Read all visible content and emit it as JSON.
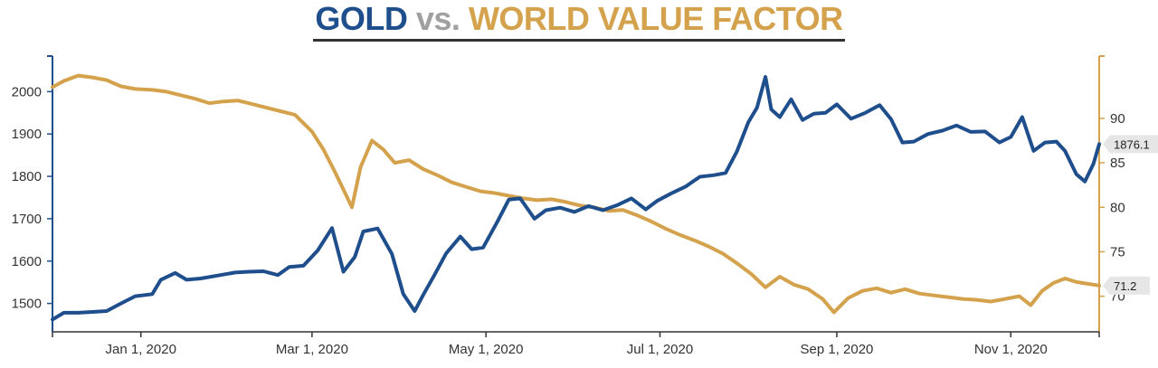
{
  "title": {
    "part1": "GOLD",
    "part2": " vs. ",
    "part3": "WORLD VALUE FACTOR",
    "color_gold_series": "#1f4e8c",
    "color_vs": "#a0a0a0",
    "color_value_series": "#d4a24c"
  },
  "chart_data": {
    "type": "line",
    "title": "GOLD vs. WORLD VALUE FACTOR",
    "xlabel": "",
    "ylabel_left": "",
    "ylabel_right": "",
    "x_range": [
      "2019-12-01",
      "2020-12-02"
    ],
    "x_ticks": [
      {
        "date": "2020-01-01",
        "label": "Jan 1, 2020"
      },
      {
        "date": "2020-03-01",
        "label": "Mar 1, 2020"
      },
      {
        "date": "2020-05-01",
        "label": "May 1, 2020"
      },
      {
        "date": "2020-07-01",
        "label": "Jul 1, 2020"
      },
      {
        "date": "2020-09-01",
        "label": "Sep 1, 2020"
      },
      {
        "date": "2020-11-01",
        "label": "Nov 1, 2020"
      }
    ],
    "y_left": {
      "range": [
        1433,
        2084
      ],
      "ticks": [
        "1500",
        "1600",
        "1700",
        "1800",
        "1900",
        "2000"
      ]
    },
    "y_right": {
      "range": [
        66.0,
        97.0
      ],
      "ticks": [
        "70",
        "75",
        "80",
        "85",
        "90"
      ]
    },
    "grid": false,
    "legend": "none",
    "series": [
      {
        "axis": "left",
        "color": "#1f4e8c",
        "end_label": "1876.1",
        "points": [
          [
            "2019-12-01",
            1462
          ],
          [
            "2019-12-05",
            1478
          ],
          [
            "2019-12-10",
            1478
          ],
          [
            "2019-12-15",
            1480
          ],
          [
            "2019-12-20",
            1482
          ],
          [
            "2019-12-25",
            1500
          ],
          [
            "2019-12-30",
            1517
          ],
          [
            "2020-01-05",
            1522
          ],
          [
            "2020-01-08",
            1556
          ],
          [
            "2020-01-13",
            1572
          ],
          [
            "2020-01-17",
            1556
          ],
          [
            "2020-01-22",
            1559
          ],
          [
            "2020-01-28",
            1566
          ],
          [
            "2020-02-03",
            1573
          ],
          [
            "2020-02-08",
            1575
          ],
          [
            "2020-02-13",
            1576
          ],
          [
            "2020-02-18",
            1567
          ],
          [
            "2020-02-22",
            1586
          ],
          [
            "2020-02-27",
            1589
          ],
          [
            "2020-03-03",
            1625
          ],
          [
            "2020-03-08",
            1678
          ],
          [
            "2020-03-12",
            1575
          ],
          [
            "2020-03-16",
            1610
          ],
          [
            "2020-03-19",
            1670
          ],
          [
            "2020-03-24",
            1677
          ],
          [
            "2020-03-29",
            1617
          ],
          [
            "2020-04-02",
            1522
          ],
          [
            "2020-04-06",
            1482
          ],
          [
            "2020-04-09",
            1520
          ],
          [
            "2020-04-13",
            1568
          ],
          [
            "2020-04-17",
            1618
          ],
          [
            "2020-04-22",
            1658
          ],
          [
            "2020-04-26",
            1628
          ],
          [
            "2020-04-30",
            1632
          ],
          [
            "2020-05-05",
            1693
          ],
          [
            "2020-05-09",
            1745
          ],
          [
            "2020-05-13",
            1748
          ],
          [
            "2020-05-18",
            1700
          ],
          [
            "2020-05-22",
            1720
          ],
          [
            "2020-05-27",
            1726
          ],
          [
            "2020-06-01",
            1716
          ],
          [
            "2020-06-06",
            1730
          ],
          [
            "2020-06-11",
            1720
          ],
          [
            "2020-06-16",
            1732
          ],
          [
            "2020-06-21",
            1748
          ],
          [
            "2020-06-26",
            1722
          ],
          [
            "2020-06-30",
            1742
          ],
          [
            "2020-07-05",
            1760
          ],
          [
            "2020-07-10",
            1776
          ],
          [
            "2020-07-15",
            1799
          ],
          [
            "2020-07-20",
            1803
          ],
          [
            "2020-07-24",
            1808
          ],
          [
            "2020-07-28",
            1859
          ],
          [
            "2020-08-01",
            1928
          ],
          [
            "2020-08-04",
            1962
          ],
          [
            "2020-08-07",
            2035
          ],
          [
            "2020-08-09",
            1958
          ],
          [
            "2020-08-12",
            1940
          ],
          [
            "2020-08-16",
            1982
          ],
          [
            "2020-08-20",
            1933
          ],
          [
            "2020-08-24",
            1948
          ],
          [
            "2020-08-28",
            1950
          ],
          [
            "2020-09-01",
            1970
          ],
          [
            "2020-09-06",
            1936
          ],
          [
            "2020-09-11",
            1950
          ],
          [
            "2020-09-16",
            1968
          ],
          [
            "2020-09-20",
            1935
          ],
          [
            "2020-09-24",
            1880
          ],
          [
            "2020-09-28",
            1882
          ],
          [
            "2020-10-03",
            1900
          ],
          [
            "2020-10-08",
            1908
          ],
          [
            "2020-10-13",
            1920
          ],
          [
            "2020-10-18",
            1905
          ],
          [
            "2020-10-23",
            1906
          ],
          [
            "2020-10-28",
            1880
          ],
          [
            "2020-11-01",
            1893
          ],
          [
            "2020-11-05",
            1940
          ],
          [
            "2020-11-09",
            1860
          ],
          [
            "2020-11-13",
            1880
          ],
          [
            "2020-11-17",
            1882
          ],
          [
            "2020-11-20",
            1860
          ],
          [
            "2020-11-24",
            1805
          ],
          [
            "2020-11-27",
            1788
          ],
          [
            "2020-11-30",
            1830
          ],
          [
            "2020-12-02",
            1876.1
          ]
        ]
      },
      {
        "axis": "right",
        "color": "#d4a24c",
        "end_label": "71.2",
        "points": [
          [
            "2019-12-01",
            93.5
          ],
          [
            "2019-12-05",
            94.2
          ],
          [
            "2019-12-10",
            94.8
          ],
          [
            "2019-12-15",
            94.6
          ],
          [
            "2019-12-20",
            94.3
          ],
          [
            "2019-12-25",
            93.6
          ],
          [
            "2019-12-30",
            93.3
          ],
          [
            "2020-01-05",
            93.2
          ],
          [
            "2020-01-10",
            93.0
          ],
          [
            "2020-01-15",
            92.6
          ],
          [
            "2020-01-20",
            92.2
          ],
          [
            "2020-01-25",
            91.7
          ],
          [
            "2020-01-30",
            91.9
          ],
          [
            "2020-02-04",
            92.0
          ],
          [
            "2020-02-09",
            91.6
          ],
          [
            "2020-02-14",
            91.2
          ],
          [
            "2020-02-19",
            90.8
          ],
          [
            "2020-02-24",
            90.4
          ],
          [
            "2020-03-01",
            88.5
          ],
          [
            "2020-03-05",
            86.5
          ],
          [
            "2020-03-09",
            84.0
          ],
          [
            "2020-03-12",
            82.0
          ],
          [
            "2020-03-15",
            80.0
          ],
          [
            "2020-03-18",
            84.5
          ],
          [
            "2020-03-22",
            87.5
          ],
          [
            "2020-03-26",
            86.5
          ],
          [
            "2020-03-30",
            85.0
          ],
          [
            "2020-04-04",
            85.3
          ],
          [
            "2020-04-09",
            84.3
          ],
          [
            "2020-04-14",
            83.6
          ],
          [
            "2020-04-19",
            82.8
          ],
          [
            "2020-04-24",
            82.3
          ],
          [
            "2020-04-29",
            81.8
          ],
          [
            "2020-05-04",
            81.6
          ],
          [
            "2020-05-09",
            81.3
          ],
          [
            "2020-05-14",
            81.0
          ],
          [
            "2020-05-19",
            80.8
          ],
          [
            "2020-05-24",
            80.9
          ],
          [
            "2020-05-29",
            80.6
          ],
          [
            "2020-06-03",
            80.2
          ],
          [
            "2020-06-08",
            80.0
          ],
          [
            "2020-06-13",
            79.6
          ],
          [
            "2020-06-18",
            79.7
          ],
          [
            "2020-06-23",
            79.1
          ],
          [
            "2020-06-28",
            78.4
          ],
          [
            "2020-07-03",
            77.6
          ],
          [
            "2020-07-08",
            76.9
          ],
          [
            "2020-07-13",
            76.3
          ],
          [
            "2020-07-18",
            75.6
          ],
          [
            "2020-07-23",
            74.8
          ],
          [
            "2020-07-28",
            73.7
          ],
          [
            "2020-08-02",
            72.5
          ],
          [
            "2020-08-07",
            71.0
          ],
          [
            "2020-08-12",
            72.2
          ],
          [
            "2020-08-17",
            71.3
          ],
          [
            "2020-08-22",
            70.8
          ],
          [
            "2020-08-27",
            69.7
          ],
          [
            "2020-08-31",
            68.2
          ],
          [
            "2020-09-05",
            69.8
          ],
          [
            "2020-09-10",
            70.6
          ],
          [
            "2020-09-15",
            70.9
          ],
          [
            "2020-09-20",
            70.4
          ],
          [
            "2020-09-25",
            70.8
          ],
          [
            "2020-09-30",
            70.3
          ],
          [
            "2020-10-05",
            70.1
          ],
          [
            "2020-10-10",
            69.9
          ],
          [
            "2020-10-15",
            69.7
          ],
          [
            "2020-10-20",
            69.6
          ],
          [
            "2020-10-25",
            69.4
          ],
          [
            "2020-10-30",
            69.7
          ],
          [
            "2020-11-04",
            70.0
          ],
          [
            "2020-11-08",
            69.0
          ],
          [
            "2020-11-12",
            70.6
          ],
          [
            "2020-11-16",
            71.5
          ],
          [
            "2020-11-20",
            72.0
          ],
          [
            "2020-11-24",
            71.6
          ],
          [
            "2020-11-28",
            71.4
          ],
          [
            "2020-12-02",
            71.2
          ]
        ]
      }
    ]
  }
}
